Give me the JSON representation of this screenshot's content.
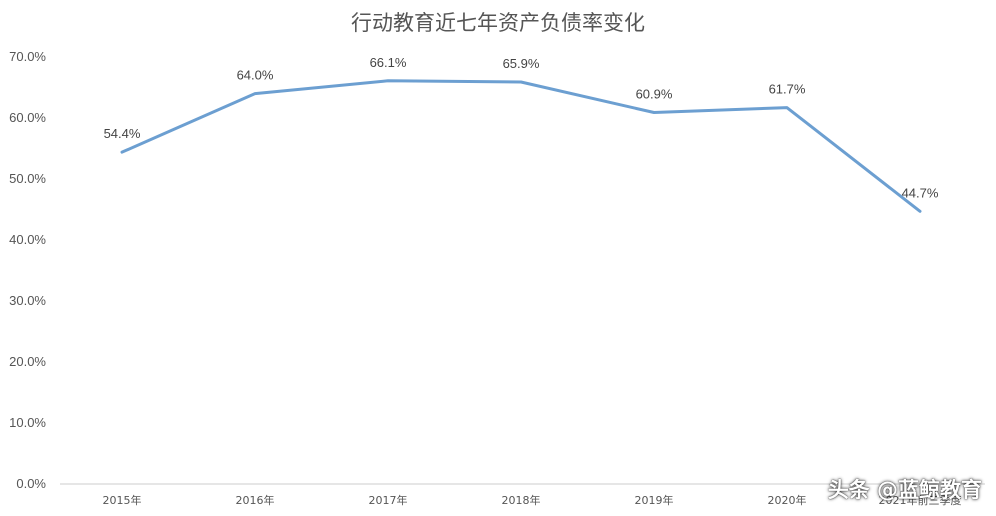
{
  "chart_data": {
    "type": "line",
    "title": "行动教育近七年资产负债率变化",
    "categories": [
      "2015年",
      "2016年",
      "2017年",
      "2018年",
      "2019年",
      "2020年",
      "2021年前三季度"
    ],
    "series": [
      {
        "values": [
          54.4,
          64.0,
          66.1,
          65.9,
          60.9,
          61.7,
          44.7
        ],
        "labels": [
          "54.4%",
          "64.0%",
          "66.1%",
          "65.9%",
          "60.9%",
          "61.7%",
          "44.7%"
        ]
      }
    ],
    "yticks": [
      "0.0%",
      "10.0%",
      "20.0%",
      "30.0%",
      "40.0%",
      "50.0%",
      "60.0%",
      "70.0%"
    ],
    "ylim": [
      0,
      70
    ],
    "grid": false,
    "legend": "none",
    "line_color": "#6c9fd1",
    "text_color": "#555555"
  },
  "watermark": "头条 @蓝鲸教育"
}
